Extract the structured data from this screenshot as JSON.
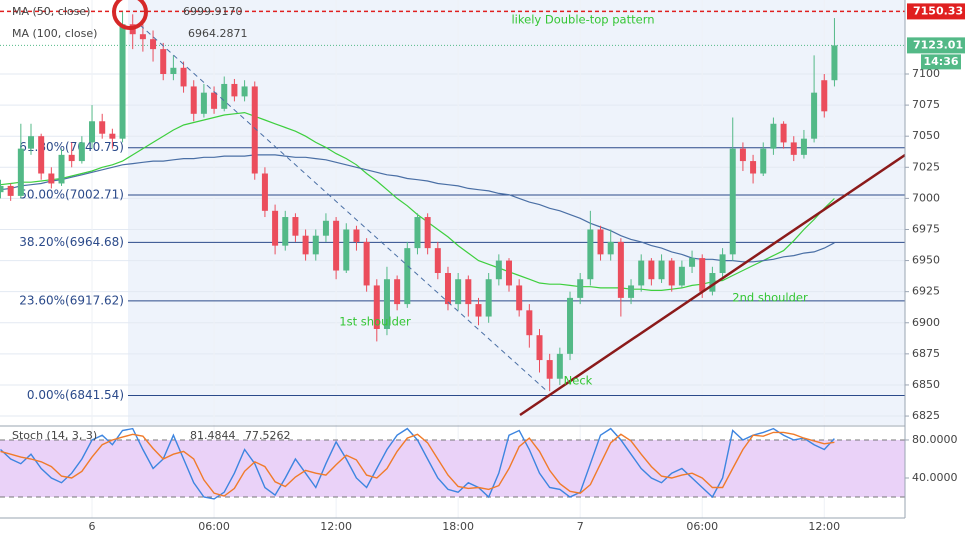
{
  "chart_data": {
    "type": "candlestick",
    "categories": [
      null,
      null,
      null,
      null,
      null,
      null,
      null,
      null,
      null,
      "6",
      null,
      null,
      null,
      null,
      null,
      null,
      null,
      null,
      null,
      null,
      null,
      "06:00",
      null,
      null,
      null,
      null,
      null,
      null,
      null,
      null,
      null,
      null,
      null,
      "12:00",
      null,
      null,
      null,
      null,
      null,
      null,
      null,
      null,
      null,
      null,
      null,
      "18:00",
      null,
      null,
      null,
      null,
      null,
      null,
      null,
      null,
      null,
      null,
      null,
      "7",
      null,
      null,
      null,
      null,
      null,
      null,
      null,
      null,
      null,
      null,
      null,
      "06:00",
      null,
      null,
      null,
      null,
      null,
      null,
      null,
      null,
      null,
      null,
      null,
      "12:00",
      null
    ],
    "open": [
      7005,
      7010,
      7002,
      7040,
      7050,
      7020,
      7012,
      7035,
      7030,
      7045,
      7062,
      7052,
      7048,
      7140,
      7132,
      7128,
      7120,
      7100,
      7105,
      7090,
      7068,
      7085,
      7072,
      7092,
      7082,
      7090,
      7020,
      6990,
      6962,
      6985,
      6970,
      6955,
      6970,
      6982,
      6942,
      6975,
      6965,
      6930,
      6895,
      6935,
      6915,
      6960,
      6985,
      6960,
      6940,
      6915,
      6935,
      6915,
      6905,
      6935,
      6950,
      6930,
      6910,
      6890,
      6870,
      6855,
      6875,
      6920,
      6935,
      6975,
      6955,
      6965,
      6920,
      6930,
      6950,
      6935,
      6950,
      6930,
      6945,
      6952,
      6925,
      6940,
      6955,
      7040,
      7030,
      7020,
      7040,
      7060,
      7045,
      7035,
      7048,
      7095,
      7095
    ],
    "high": [
      7015,
      7012,
      7060,
      7060,
      7052,
      7025,
      7040,
      7045,
      7050,
      7075,
      7068,
      7056,
      7150,
      7148,
      7140,
      7135,
      7125,
      7115,
      7110,
      7095,
      7092,
      7090,
      7098,
      7096,
      7095,
      7094,
      7025,
      6995,
      6990,
      6988,
      6975,
      6975,
      6988,
      6985,
      6980,
      6978,
      6968,
      6935,
      6945,
      6938,
      6965,
      6988,
      6988,
      6965,
      6945,
      6940,
      6938,
      6920,
      6940,
      6955,
      6952,
      6935,
      6915,
      6895,
      6875,
      6880,
      6925,
      6940,
      6990,
      6978,
      6975,
      6968,
      6935,
      6955,
      6952,
      6955,
      6952,
      6950,
      6958,
      6955,
      6945,
      6960,
      7065,
      7045,
      7035,
      7045,
      7065,
      7062,
      7050,
      7055,
      7115,
      7100,
      7145
    ],
    "low": [
      7000,
      6998,
      7000,
      7035,
      7015,
      7008,
      7010,
      7025,
      7028,
      7040,
      7048,
      7040,
      7045,
      7120,
      7118,
      7110,
      7095,
      7095,
      7085,
      7062,
      7065,
      7068,
      7070,
      7078,
      7078,
      7015,
      6985,
      6955,
      6958,
      6965,
      6950,
      6950,
      6965,
      6935,
      6940,
      6958,
      6925,
      6885,
      6890,
      6910,
      6912,
      6955,
      6955,
      6935,
      6910,
      6910,
      6905,
      6898,
      6900,
      6930,
      6925,
      6905,
      6880,
      6860,
      6845,
      6850,
      6870,
      6915,
      6930,
      6950,
      6950,
      6905,
      6915,
      6925,
      6930,
      6932,
      6925,
      6928,
      6940,
      6920,
      6922,
      6935,
      6950,
      7022,
      7012,
      7018,
      7035,
      7040,
      7030,
      7032,
      7045,
      7065,
      7090
    ],
    "close": [
      7010,
      7002,
      7040,
      7050,
      7020,
      7012,
      7035,
      7030,
      7045,
      7062,
      7052,
      7048,
      7140,
      7132,
      7128,
      7120,
      7100,
      7105,
      7090,
      7068,
      7085,
      7072,
      7092,
      7082,
      7090,
      7020,
      6990,
      6962,
      6985,
      6970,
      6955,
      6970,
      6982,
      6942,
      6975,
      6965,
      6930,
      6895,
      6935,
      6915,
      6960,
      6985,
      6960,
      6940,
      6915,
      6935,
      6915,
      6905,
      6935,
      6950,
      6930,
      6910,
      6890,
      6870,
      6855,
      6875,
      6920,
      6935,
      6975,
      6955,
      6965,
      6920,
      6930,
      6950,
      6935,
      6950,
      6930,
      6945,
      6952,
      6925,
      6940,
      6955,
      7040,
      7030,
      7020,
      7040,
      7060,
      7045,
      7035,
      7048,
      7085,
      7070,
      7123.01
    ],
    "up_color": "#53b987",
    "down_color": "#eb4d5c",
    "ylim": [
      6817.8,
      7159.5
    ],
    "yticks": [
      6825,
      6850,
      6875,
      6900,
      6925,
      6950,
      6975,
      7000,
      7025,
      7050,
      7075,
      7100
    ],
    "overlays": [
      {
        "name": "MA (50, close)",
        "color": "#3ecf3e",
        "readout_label": "6999.9170",
        "values": [
          7011,
          7012,
          7013,
          7013,
          7014,
          7015,
          7016,
          7018,
          7020,
          7022,
          7025,
          7027,
          7030,
          7035,
          7040,
          7045,
          7050,
          7055,
          7059,
          7061,
          7063,
          7065,
          7067,
          7068,
          7069,
          7066,
          7063,
          7060,
          7057,
          7054,
          7050,
          7045,
          7041,
          7036,
          7032,
          7027,
          7020,
          7014,
          7007,
          7000,
          6994,
          6987,
          6981,
          6975,
          6969,
          6962,
          6956,
          6950,
          6947,
          6944,
          6941,
          6938,
          6935,
          6932,
          6931,
          6931,
          6930,
          6929,
          6929,
          6928,
          6928,
          6928,
          6927,
          6927,
          6926,
          6926,
          6927,
          6928,
          6930,
          6931,
          6933,
          6934,
          6938,
          6942,
          6946,
          6950,
          6954,
          6958,
          6966,
          6975,
          6983,
          6992,
          6999.917
        ]
      },
      {
        "name": "MA (100, close)",
        "color": "#4a6fa5",
        "readout_label": "6964.2871",
        "values": [
          7007,
          7008,
          7010,
          7011,
          7012,
          7014,
          7015,
          7017,
          7019,
          7021,
          7023,
          7025,
          7027,
          7028,
          7029,
          7030,
          7030,
          7031,
          7032,
          7032,
          7033,
          7033,
          7034,
          7034,
          7034,
          7035,
          7035,
          7035,
          7034,
          7033,
          7033,
          7032,
          7031,
          7029,
          7027,
          7025,
          7023,
          7021,
          7019,
          7018,
          7016,
          7015,
          7014,
          7012,
          7011,
          7010,
          7008,
          7007,
          7006,
          7004,
          7003,
          7000,
          6997,
          6995,
          6992,
          6990,
          6987,
          6984,
          6980,
          6977,
          6974,
          6970,
          6967,
          6965,
          6962,
          6960,
          6957,
          6955,
          6952,
          6951,
          6951,
          6950,
          6950,
          6949,
          6949,
          6950,
          6951,
          6953,
          6954,
          6956,
          6957,
          6960,
          6964.2871
        ]
      }
    ],
    "fib_levels": [
      {
        "value": 7040.75,
        "label": "61.80%(7040.75)"
      },
      {
        "value": 7002.71,
        "label": "50.00%(7002.71)"
      },
      {
        "value": 6964.68,
        "label": "38.20%(6964.68)"
      },
      {
        "value": 6917.62,
        "label": "23.60%(6917.62)"
      },
      {
        "value": 6841.54,
        "label": "0.00%(6841.54)"
      }
    ],
    "high_line": 7150.33,
    "countdown": "14:36",
    "annotations": [
      "likely Double-top pattern",
      "1st shoulder",
      "Neck",
      "2nd shoulder"
    ],
    "stoch": {
      "type": "line",
      "title": "Stoch (14, 3, 3)",
      "ylim": [
        -2.1,
        92.6
      ],
      "yticks": [
        {
          "value": 80,
          "label": "80.0000"
        },
        {
          "value": 40,
          "label": "40.0000"
        }
      ],
      "bands": [
        20,
        80
      ],
      "band_color": "#ead2f8",
      "series": [
        {
          "color": "#3d85e0",
          "values": [
            70,
            60,
            55,
            65,
            50,
            40,
            35,
            45,
            60,
            80,
            85,
            75,
            90,
            92,
            70,
            50,
            60,
            85,
            60,
            35,
            20,
            18,
            25,
            45,
            70,
            55,
            30,
            22,
            40,
            60,
            45,
            30,
            55,
            78,
            60,
            40,
            30,
            50,
            70,
            85,
            92,
            80,
            60,
            40,
            28,
            25,
            35,
            30,
            20,
            45,
            85,
            90,
            70,
            45,
            30,
            28,
            20,
            25,
            55,
            85,
            92,
            80,
            65,
            50,
            40,
            35,
            45,
            50,
            40,
            30,
            20,
            40,
            90,
            80,
            85,
            88,
            92,
            85,
            80,
            82,
            75,
            70,
            81.4844
          ]
        },
        {
          "color": "#f07b2a",
          "values": [
            68,
            65,
            62,
            60,
            57,
            52,
            42,
            40,
            47,
            62,
            75,
            80,
            83,
            86,
            84,
            71,
            60,
            65,
            68,
            60,
            38,
            24,
            21,
            29,
            47,
            57,
            52,
            36,
            31,
            41,
            48,
            45,
            43,
            54,
            64,
            59,
            43,
            40,
            50,
            68,
            82,
            86,
            77,
            60,
            43,
            31,
            29,
            30,
            28,
            32,
            50,
            73,
            82,
            68,
            48,
            34,
            26,
            24,
            33,
            55,
            77,
            86,
            79,
            65,
            52,
            42,
            40,
            43,
            45,
            40,
            30,
            30,
            50,
            70,
            85,
            84,
            88,
            88,
            86,
            82,
            79,
            76,
            77.5262
          ]
        }
      ]
    }
  }
}
